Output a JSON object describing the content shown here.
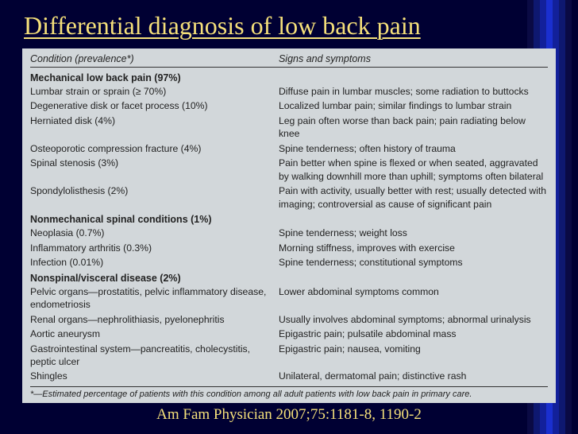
{
  "slide": {
    "title_underlined": "Differential diagnosis of low back pain",
    "title_plain": "",
    "citation": "Am Fam Physician 2007;75:1181-8, 1190-2"
  },
  "table": {
    "header_left": "Condition (prevalence*)",
    "header_right": "Signs and symptoms",
    "footnote": "*—Estimated percentage of patients with this condition among all adult patients with low back pain in primary care.",
    "sections": [
      {
        "heading": "Mechanical low back pain (97%)",
        "rows": [
          {
            "cond": "Lumbar strain or sprain (≥ 70%)",
            "sign": "Diffuse pain in lumbar muscles; some radiation to buttocks"
          },
          {
            "cond": "Degenerative disk or facet process (10%)",
            "sign": "Localized lumbar pain; similar findings to lumbar strain"
          },
          {
            "cond": "Herniated disk (4%)",
            "sign": "Leg pain often worse than back pain; pain radiating below knee"
          },
          {
            "cond": "Osteoporotic compression fracture (4%)",
            "sign": "Spine tenderness; often history of trauma"
          },
          {
            "cond": "Spinal stenosis (3%)",
            "sign": "Pain better when spine is flexed or when seated, aggravated by walking downhill more than uphill; symptoms often bilateral"
          },
          {
            "cond": "Spondylolisthesis (2%)",
            "sign": "Pain with activity, usually better with rest; usually detected with imaging; controversial as cause of significant pain"
          }
        ]
      },
      {
        "heading": "Nonmechanical spinal conditions (1%)",
        "rows": [
          {
            "cond": "Neoplasia (0.7%)",
            "sign": "Spine tenderness; weight loss"
          },
          {
            "cond": "Inflammatory arthritis (0.3%)",
            "sign": "Morning stiffness, improves with exercise"
          },
          {
            "cond": "Infection (0.01%)",
            "sign": "Spine tenderness; constitutional symptoms"
          }
        ]
      },
      {
        "heading": "Nonspinal/visceral disease (2%)",
        "rows": [
          {
            "cond": "Pelvic organs—prostatitis, pelvic inflammatory disease, endometriosis",
            "sign": "Lower abdominal symptoms common"
          },
          {
            "cond": "Renal organs—nephrolithiasis, pyelonephritis",
            "sign": "Usually involves abdominal symptoms; abnormal urinalysis"
          },
          {
            "cond": "Aortic aneurysm",
            "sign": "Epigastric pain; pulsatile abdominal mass"
          },
          {
            "cond": "Gastrointestinal system—pancreatitis, cholecystitis, peptic ulcer",
            "sign": "Epigastric pain; nausea, vomiting"
          },
          {
            "cond": "Shingles",
            "sign": "Unilateral, dermatomal pain; distinctive rash"
          }
        ]
      }
    ]
  },
  "style": {
    "background_color": "#000033",
    "panel_bg": "#d2d7da",
    "title_color": "#f5e07a",
    "stripe_colors": [
      "#0a0a44",
      "#0e1870",
      "#12209a",
      "#1a2fcf",
      "#12209a",
      "#0e1870",
      "#0a0a44",
      "#000033"
    ],
    "title_fontsize": 32,
    "citation_fontsize": 19,
    "body_fontsize": 12.2
  }
}
